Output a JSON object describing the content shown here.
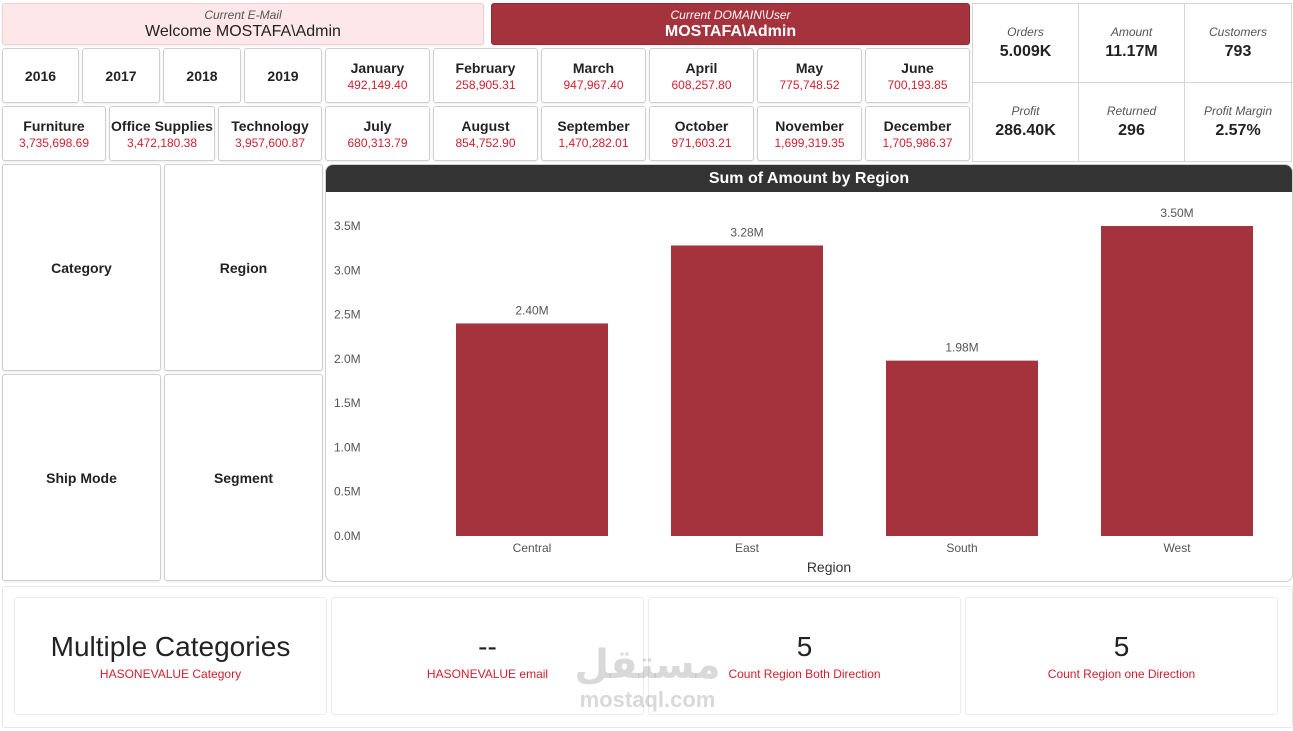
{
  "header": {
    "email_label": "Current E-Mail",
    "email_value": "Welcome MOSTAFA\\Admin",
    "domain_label": "Current DOMAIN\\User",
    "domain_value": "MOSTAFA\\Admin"
  },
  "kpis": [
    {
      "label": "Orders",
      "value": "5.009K"
    },
    {
      "label": "Amount",
      "value": "11.17M"
    },
    {
      "label": "Customers",
      "value": "793"
    },
    {
      "label": "Profit",
      "value": "286.40K"
    },
    {
      "label": "Returned",
      "value": "296"
    },
    {
      "label": "Profit Margin",
      "value": "2.57%"
    }
  ],
  "years": [
    "2016",
    "2017",
    "2018",
    "2019"
  ],
  "categories": [
    {
      "label": "Furniture",
      "value": "3,735,698.69"
    },
    {
      "label": "Office Supplies",
      "value": "3,472,180.38"
    },
    {
      "label": "Technology",
      "value": "3,957,600.87"
    }
  ],
  "months": [
    {
      "label": "January",
      "value": "492,149.40"
    },
    {
      "label": "February",
      "value": "258,905.31"
    },
    {
      "label": "March",
      "value": "947,967.40"
    },
    {
      "label": "April",
      "value": "608,257.80"
    },
    {
      "label": "May",
      "value": "775,748.52"
    },
    {
      "label": "June",
      "value": "700,193.85"
    },
    {
      "label": "July",
      "value": "680,313.79"
    },
    {
      "label": "August",
      "value": "854,752.90"
    },
    {
      "label": "September",
      "value": "1,470,282.01"
    },
    {
      "label": "October",
      "value": "971,603.21"
    },
    {
      "label": "November",
      "value": "1,699,319.35"
    },
    {
      "label": "December",
      "value": "1,705,986.37"
    }
  ],
  "filters": [
    "Category",
    "Region",
    "Ship Mode",
    "Segment"
  ],
  "chart_data": {
    "type": "bar",
    "title": "Sum of Amount by Region",
    "xlabel": "Region",
    "ylabel": "",
    "categories": [
      "Central",
      "East",
      "South",
      "West"
    ],
    "values": [
      2.4,
      3.28,
      1.98,
      3.5
    ],
    "data_labels": [
      "2.40M",
      "3.28M",
      "1.98M",
      "3.50M"
    ],
    "ylim": [
      0,
      3.5
    ],
    "yticks": [
      "0.0M",
      "0.5M",
      "1.0M",
      "1.5M",
      "2.0M",
      "2.5M",
      "3.0M",
      "3.5M"
    ],
    "grid": false,
    "bar_color": "#a4333d"
  },
  "bottom": [
    {
      "value": "Multiple Categories",
      "label": "HASONEVALUE Category"
    },
    {
      "value": "--",
      "label": "HASONEVALUE email"
    },
    {
      "value": "5",
      "label": "Count Region Both Direction"
    },
    {
      "value": "5",
      "label": "Count Region one Direction"
    }
  ],
  "watermark": {
    "arabic": "مستقل",
    "latin": "mostaql.com"
  },
  "colors": {
    "accent": "#a4333d",
    "accent_light": "#fde7e8",
    "value_red": "#d0202e",
    "title_bar": "#333333"
  }
}
